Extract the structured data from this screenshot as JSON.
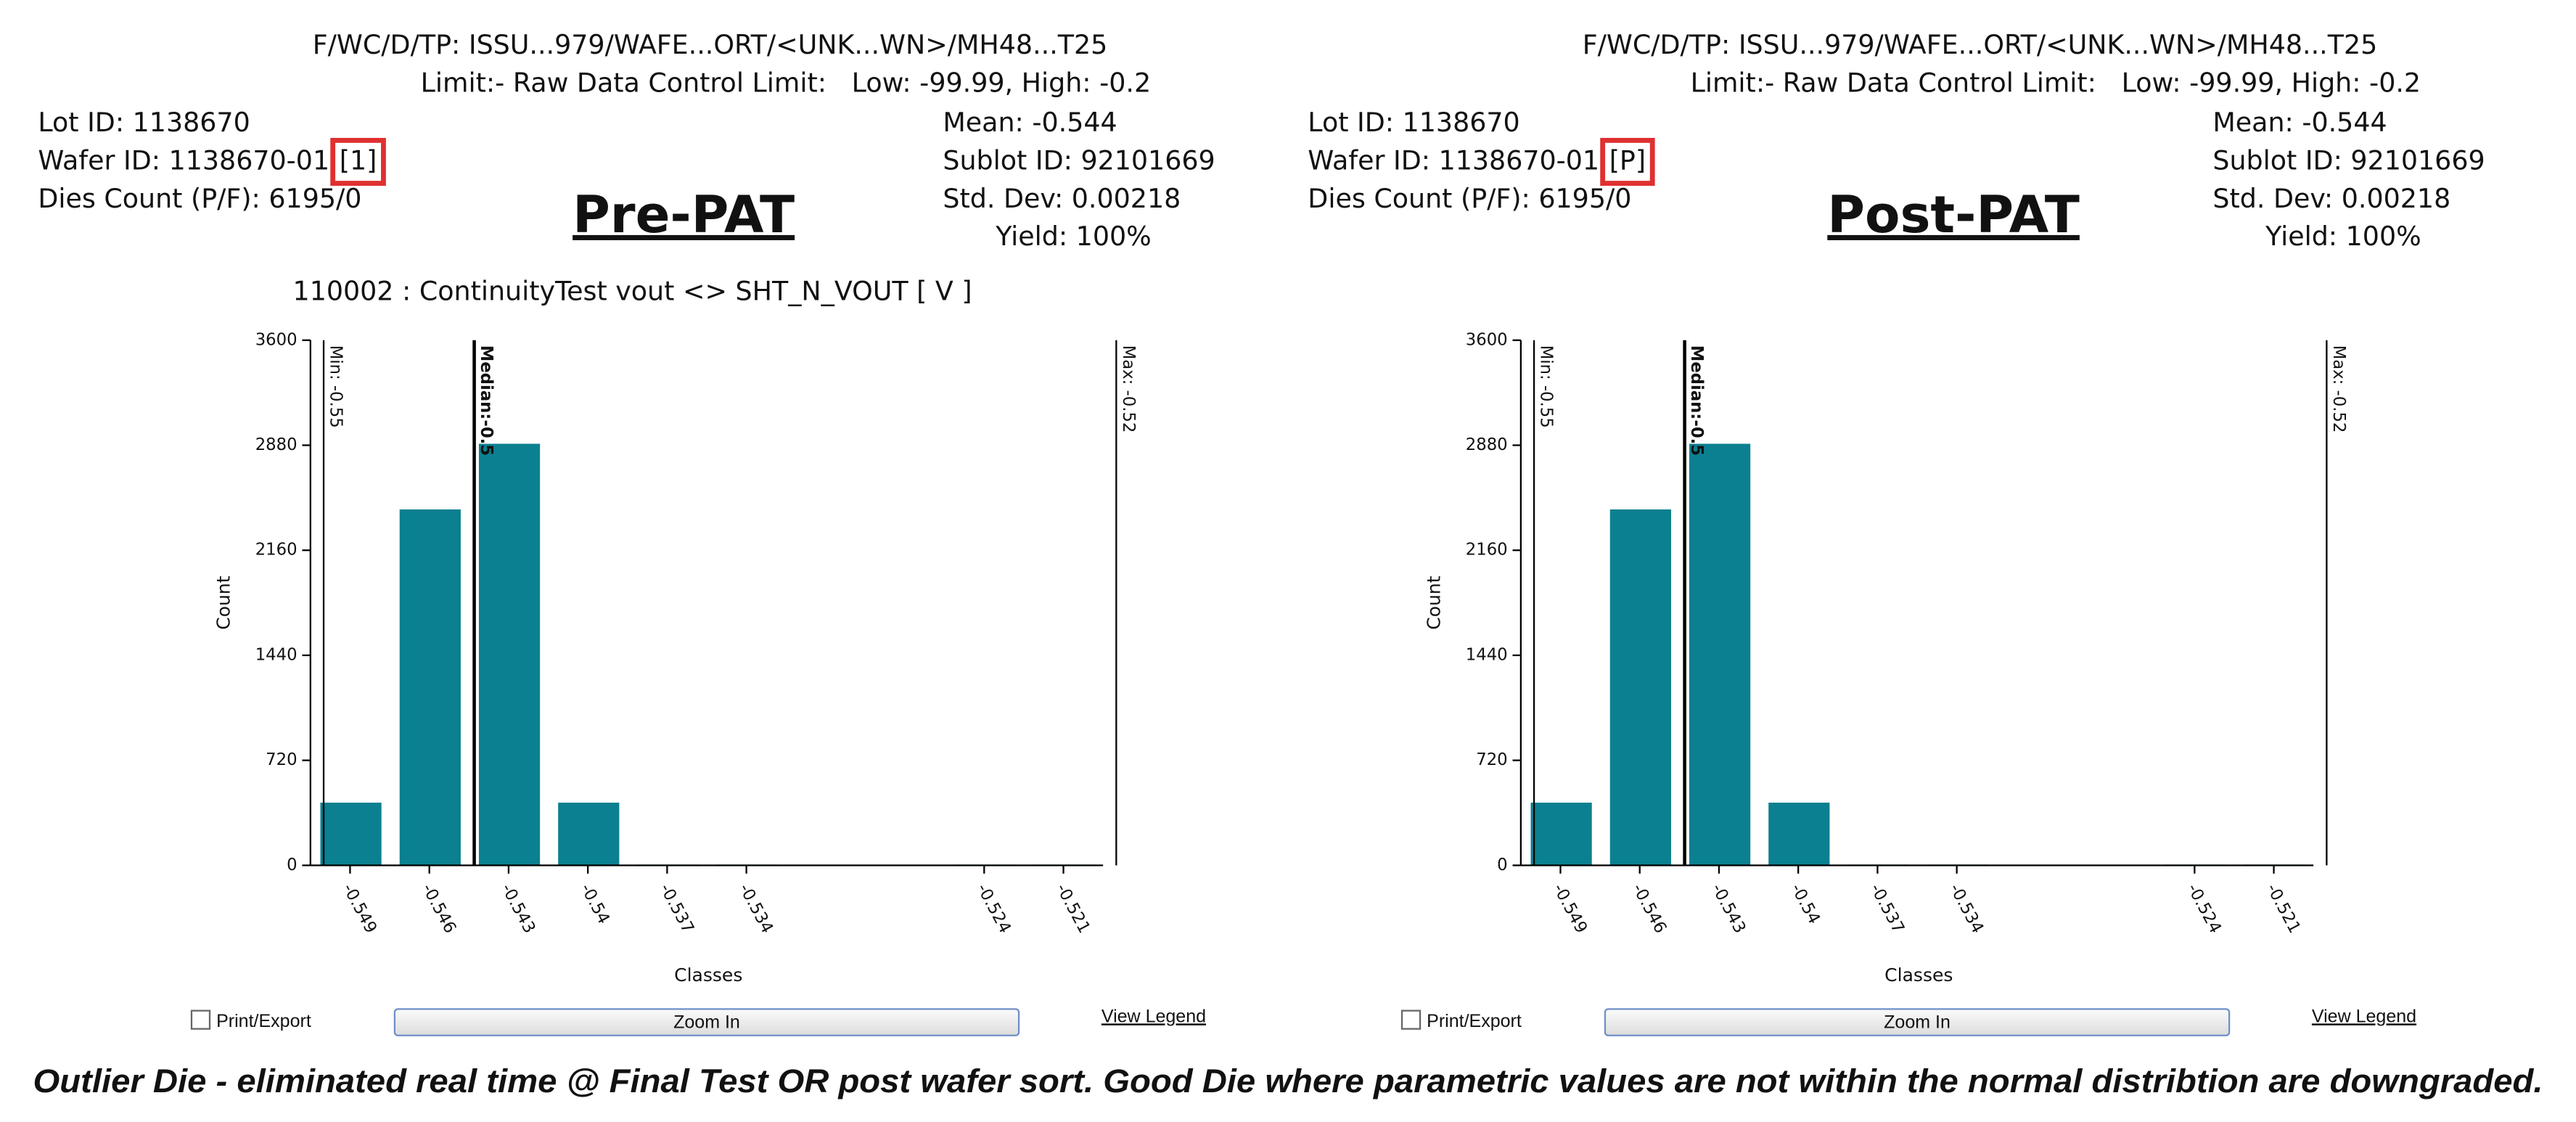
{
  "panels": [
    {
      "path_line": "F/WC/D/TP: ISSU...979/WAFE...ORT/<UNK...WN>/MH48...T25",
      "limit_line": "Limit:- Raw Data Control Limit:   Low: -99.99, High: -0.2",
      "lot_id": "Lot ID: 1138670",
      "wafer_id": "Wafer ID: 1138670-01",
      "wafer_tag": "[1]",
      "dies_count": "Dies Count (P/F): 6195/0",
      "mean": "Mean: -0.544",
      "sublot_id": "Sublot ID: 92101669",
      "std_dev": "Std. Dev: 0.00218",
      "yield": "Yield: 100%",
      "heading": "Pre-PAT",
      "print_export": "Print/Export",
      "zoom_in": "Zoom In",
      "view_legend": "View Legend"
    },
    {
      "path_line": "F/WC/D/TP: ISSU...979/WAFE...ORT/<UNK...WN>/MH48...T25",
      "limit_line": "Limit:- Raw Data Control Limit:   Low: -99.99, High: -0.2",
      "lot_id": "Lot ID: 1138670",
      "wafer_id": "Wafer ID: 1138670-01",
      "wafer_tag": "[P]",
      "dies_count": "Dies Count (P/F): 6195/0",
      "mean": "Mean: -0.544",
      "sublot_id": "Sublot ID: 92101669",
      "std_dev": "Std. Dev: 0.00218",
      "yield": "Yield: 100%",
      "heading": "Post-PAT",
      "print_export": "Print/Export",
      "zoom_in": "Zoom In",
      "view_legend": "View Legend"
    }
  ],
  "chart_data": [
    {
      "type": "bar",
      "title": "110002 : ContinuityTest vout <> SHT_N_VOUT [ V ]",
      "x_label": "Classes",
      "y_label": "Count",
      "categories": [
        "-0.549",
        "-0.546",
        "-0.543",
        "-0.54",
        "-0.537",
        "-0.534",
        null,
        null,
        "-0.524",
        "-0.521"
      ],
      "values": [
        430,
        2440,
        2890,
        430,
        5,
        5,
        0,
        0,
        5,
        5
      ],
      "color": "#0b8090",
      "ylim": [
        0,
        3600
      ],
      "yticks": [
        0,
        720,
        1440,
        2160,
        2880,
        3600
      ],
      "markers": [
        {
          "label": "Min: -0.55",
          "value": -0.55
        },
        {
          "label": "Median:-0.5",
          "value": -0.5443
        },
        {
          "label": "Max: -0.52",
          "value": -0.52
        }
      ]
    },
    {
      "type": "bar",
      "x_label": "Classes",
      "y_label": "Count",
      "categories": [
        "-0.549",
        "-0.546",
        "-0.543",
        "-0.54",
        "-0.537",
        "-0.534",
        null,
        null,
        "-0.524",
        "-0.521"
      ],
      "values": [
        430,
        2440,
        2890,
        430,
        5,
        5,
        0,
        0,
        5,
        5
      ],
      "color": "#0b8090",
      "ylim": [
        0,
        3600
      ],
      "yticks": [
        0,
        720,
        1440,
        2160,
        2880,
        3600
      ],
      "markers": [
        {
          "label": "Min: -0.55",
          "value": -0.55
        },
        {
          "label": "Median:-0.5",
          "value": -0.5443
        },
        {
          "label": "Max: -0.52",
          "value": -0.52
        }
      ]
    }
  ],
  "caption": "Outlier Die - eliminated real time @ Final Test OR post wafer sort. Good Die where parametric values are not within the normal distribtion are downgraded."
}
